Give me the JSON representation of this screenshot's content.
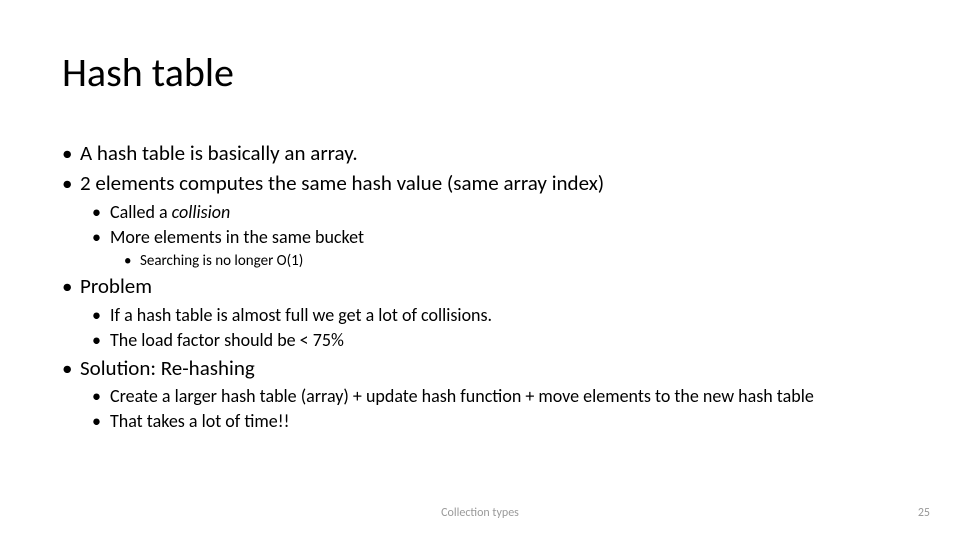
{
  "title": "Hash table",
  "bullets": {
    "b1": "A hash table is basically an array.",
    "b2": "2 elements computes the same hash value (same array index)",
    "b2_1a": "Called a ",
    "b2_1b": "collision",
    "b2_2": "More elements in the same bucket",
    "b2_2_1": "Searching is no longer O(1)",
    "b3": "Problem",
    "b3_1": "If a hash table is almost full we get a lot of collisions.",
    "b3_2": "The load factor should be < 75%",
    "b4": "Solution: Re-hashing",
    "b4_1": "Create a larger hash table (array) + update hash function + move elements to the new hash table",
    "b4_2": "That takes a lot of time!!"
  },
  "footer": {
    "center": "Collection types",
    "page": "25"
  },
  "style": {
    "background": "#ffffff",
    "text_color": "#000000",
    "footer_color": "#9a9a9a",
    "title_fontsize": 40,
    "lvl1_fontsize": 21,
    "lvl2_fontsize": 18,
    "lvl3_fontsize": 15,
    "footer_fontsize": 12
  }
}
